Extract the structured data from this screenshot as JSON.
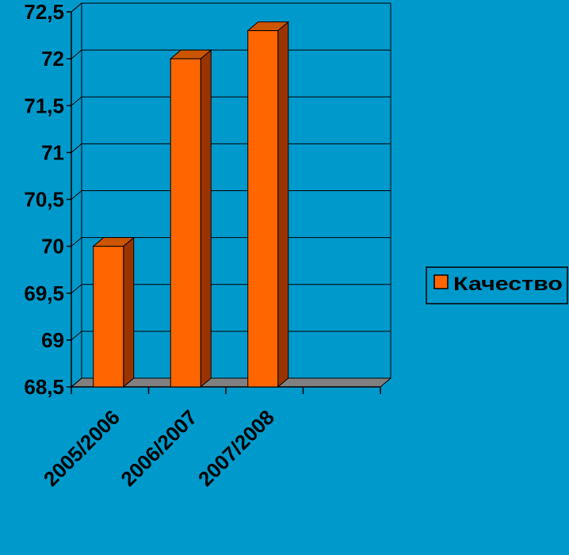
{
  "chart_data": {
    "type": "bar",
    "categories": [
      "2005/2006",
      "2006/2007",
      "2007/2008",
      ""
    ],
    "series": [
      {
        "name": "Качество",
        "values": [
          70,
          72,
          72.3,
          null
        ]
      }
    ],
    "yticks": [
      "68,5",
      "69",
      "69,5",
      "70",
      "70,5",
      "71",
      "71,5",
      "72",
      "72,5"
    ],
    "ylim": [
      68.5,
      72.5
    ],
    "grid": true,
    "legend": "right",
    "colors": {
      "background": "#0099CC",
      "bar_front": "#FF6600",
      "bar_side": "#993300",
      "bar_top": "#CC5500",
      "floor": "#808080",
      "grid": "#000000"
    }
  }
}
